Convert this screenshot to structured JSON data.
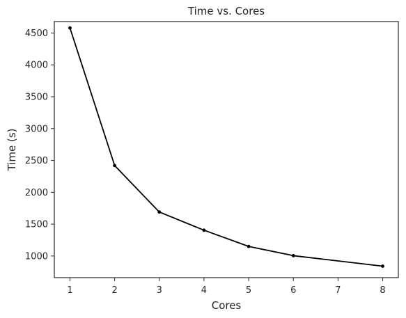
{
  "chart_data": {
    "type": "line",
    "title": "Time vs. Cores",
    "xlabel": "Cores",
    "ylabel": "Time (s)",
    "x": [
      1,
      2,
      3,
      4,
      5,
      6,
      8
    ],
    "series": [
      {
        "values": [
          4580,
          2420,
          1690,
          1405,
          1150,
          1005,
          840
        ]
      }
    ],
    "xlim": [
      0.65,
      8.35
    ],
    "ylim": [
      660,
      4680
    ],
    "xticks": [
      1,
      2,
      3,
      4,
      5,
      6,
      7,
      8
    ],
    "xtick_labels": [
      "1",
      "2",
      "3",
      "4",
      "5",
      "6",
      "7",
      "8"
    ],
    "yticks": [
      1000,
      1500,
      2000,
      2500,
      3000,
      3500,
      4000,
      4500
    ],
    "ytick_labels": [
      "1000",
      "1500",
      "2000",
      "2500",
      "3000",
      "3500",
      "4000",
      "4500"
    ],
    "grid": false,
    "legend": "none",
    "line_color": "#000000",
    "marker": "dot"
  }
}
